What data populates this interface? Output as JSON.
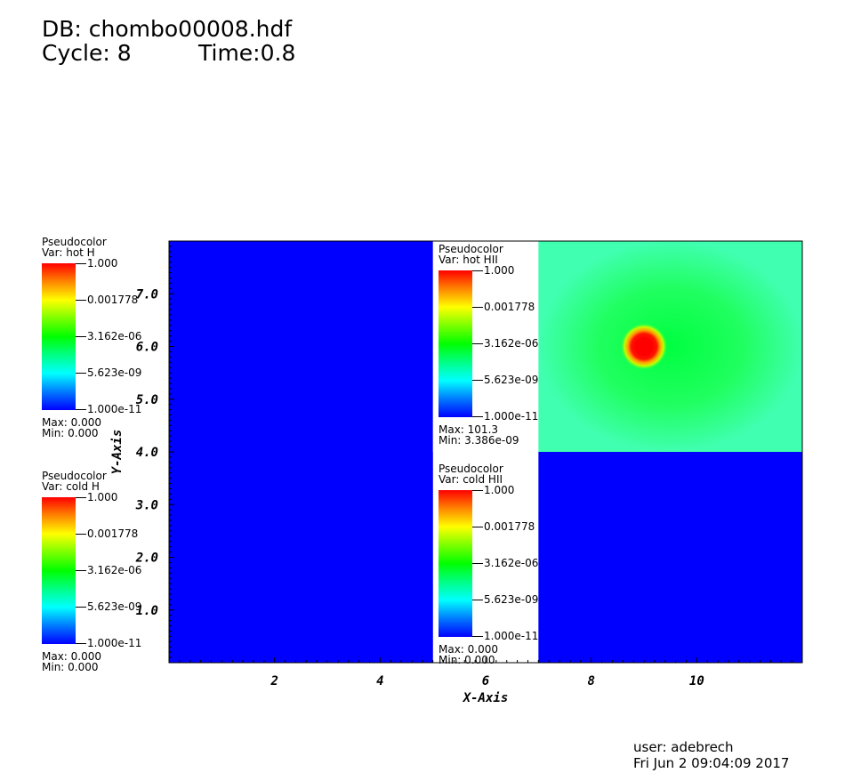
{
  "header": {
    "db_line": "DB: chombo00008.hdf",
    "cycle_line": "Cycle: 8",
    "time_line": "Time:0.8"
  },
  "legends": [
    {
      "title": "Pseudocolor",
      "var": "Var: hot H",
      "labels": [
        "1.000",
        "0.001778",
        "3.162e-06",
        "5.623e-09",
        "1.000e-11"
      ],
      "max": "Max:  0.000",
      "min": "Min:  0.000"
    },
    {
      "title": "Pseudocolor",
      "var": "Var: cold H",
      "labels": [
        "1.000",
        "0.001778",
        "3.162e-06",
        "5.623e-09",
        "1.000e-11"
      ],
      "max": "Max:  0.000",
      "min": "Min:  0.000"
    },
    {
      "title": "Pseudocolor",
      "var": "Var: hot HII",
      "labels": [
        "1.000",
        "0.001778",
        "3.162e-06",
        "5.623e-09",
        "1.000e-11"
      ],
      "max": "Max:  101.3",
      "min": "Min:  3.386e-09"
    },
    {
      "title": "Pseudocolor",
      "var": "Var: cold HII",
      "labels": [
        "1.000",
        "0.001778",
        "3.162e-06",
        "5.623e-09",
        "1.000e-11"
      ],
      "max": "Max:  0.000",
      "min": "Min:  0.000"
    }
  ],
  "footer": {
    "user": "user: adebrech",
    "date": "Fri Jun  2 09:04:09 2017"
  },
  "chart_data": {
    "type": "heatmap",
    "xlabel": "X-Axis",
    "ylabel": "Y-Axis",
    "xlim": [
      0,
      12
    ],
    "ylim": [
      0,
      8
    ],
    "xticks": [
      2,
      4,
      6,
      8,
      10
    ],
    "xtick_labels": [
      "2",
      "4",
      "6",
      "8",
      "10"
    ],
    "yticks": [
      1,
      2,
      3,
      4,
      5,
      6,
      7
    ],
    "ytick_labels": [
      "1.0",
      "2.0",
      "3.0",
      "4.0",
      "5.0",
      "6.0",
      "7.0"
    ],
    "regions": [
      {
        "name": "hot H",
        "x": [
          0,
          5
        ],
        "y": [
          0,
          8
        ],
        "color": "#0000ff"
      },
      {
        "name": "cold H",
        "x": [
          0,
          5
        ],
        "y": [
          0,
          4
        ],
        "color": "#0000ff"
      },
      {
        "name": "cold HII",
        "x": [
          7,
          12
        ],
        "y": [
          0,
          4
        ],
        "color": "#0000ff"
      },
      {
        "name": "hot HII",
        "x": [
          7,
          12
        ],
        "y": [
          4,
          8
        ],
        "background": "#20ff80",
        "hotspot": {
          "x": 9,
          "y": 6,
          "color": "#ff0000"
        }
      }
    ],
    "colorbar": {
      "scale": "log",
      "min": 1e-11,
      "max": 1.0
    }
  }
}
